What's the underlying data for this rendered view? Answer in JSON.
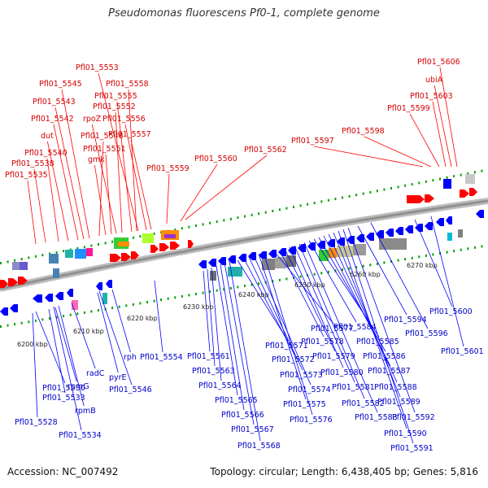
{
  "title": "Pseudomonas fluorescens Pf0-1, complete genome",
  "accession": "Accession: NC_007492",
  "summary": "Topology: circular; Length: 6,438,405 bp; Genes: 5,816",
  "colors": {
    "forward_label": "#d40000",
    "reverse_label": "#0000c8",
    "forward_gene": "#ff0000",
    "reverse_gene": "#0000ff",
    "backbone": "#909090",
    "tick": "#00a000"
  },
  "ticks": [
    "6200 kbp",
    "6210 kbp",
    "6220 kbp",
    "6230 kbp",
    "6240 kbp",
    "6250 kbp",
    "6260 kbp",
    "6270 kbp"
  ],
  "forward_labels": [
    "Pfl01_5535",
    "Pfl01_5538",
    "Pfl01_5540",
    "dut",
    "Pfl01_5542",
    "Pfl01_5543",
    "Pfl01_5545",
    "Pfl01_5548",
    "gmk",
    "Pfl01_5551",
    "rpoZ",
    "Pfl01_5552",
    "Pfl01_5553",
    "Pfl01_5555",
    "Pfl01_5556",
    "Pfl01_5557",
    "Pfl01_5558",
    "Pfl01_5559",
    "Pfl01_5560",
    "Pfl01_5562",
    "Pfl01_5597",
    "Pfl01_5598",
    "Pfl01_5599",
    "Pfl01_5603",
    "ubiA",
    "Pfl01_5606"
  ],
  "reverse_labels": [
    "Pfl01_5528",
    "Pfl01_5530",
    "Pfl01_5533",
    "rpmG",
    "rpmB",
    "Pfl01_5534",
    "radC",
    "pyrE",
    "rph",
    "Pfl01_5546",
    "Pfl01_5554",
    "Pfl01_5561",
    "Pfl01_5563",
    "Pfl01_5564",
    "Pfl01_5565",
    "Pfl01_5566",
    "Pfl01_5567",
    "Pfl01_5568",
    "Pfl01_5571",
    "Pfl01_5572",
    "Pfl01_5573",
    "Pfl01_5574",
    "Pfl01_5575",
    "Pfl01_5576",
    "Pfl01_5577",
    "Pfl01_5578",
    "Pfl01_5579",
    "Pfl01_5580",
    "Pfl01_5581",
    "Pfl01_5582",
    "Pfl01_5583",
    "Pfl01_5584",
    "Pfl01_5585",
    "Pfl01_5586",
    "Pfl01_5587",
    "Pfl01_5588",
    "Pfl01_5589",
    "Pfl01_5590",
    "Pfl01_5591",
    "Pfl01_5592",
    "Pfl01_5594",
    "Pfl01_5596",
    "Pfl01_5600",
    "Pfl01_5601"
  ]
}
